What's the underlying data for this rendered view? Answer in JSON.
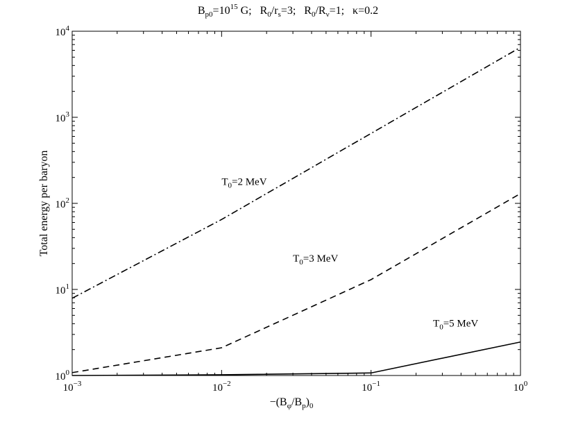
{
  "chart_data": {
    "type": "line",
    "title_parts": {
      "bp": "B",
      "bp_sub": "p0",
      "bp_eq": "=10",
      "bp_sup": "15",
      "bp_unit": " G;",
      "r0rs": "R",
      "r0rs_sub": "0",
      "r0rs_mid": "/r",
      "r0rs_sub2": "s",
      "r0rs_val": "=3;",
      "r0rv": "R",
      "r0rv_sub": "0",
      "r0rv_mid": "/R",
      "r0rv_sub2": "ν",
      "r0rv_val": "=1;",
      "kappa": "κ=0.2"
    },
    "ylabel": "Total energy per baryon",
    "xlabel_parts": {
      "a": "−(B",
      "b": "φ",
      "c": "/B",
      "d": "p",
      "e": ")",
      "f": "0"
    },
    "xscale": "log",
    "yscale": "log",
    "xlim": [
      0.001,
      1
    ],
    "ylim": [
      1,
      10000
    ],
    "x_ticks": [
      {
        "base": "10",
        "exp": "−3"
      },
      {
        "base": "10",
        "exp": "−2"
      },
      {
        "base": "10",
        "exp": "−1"
      },
      {
        "base": "10",
        "exp": "0"
      }
    ],
    "y_ticks": [
      {
        "base": "10",
        "exp": "0"
      },
      {
        "base": "10",
        "exp": "1"
      },
      {
        "base": "10",
        "exp": "2"
      },
      {
        "base": "10",
        "exp": "3"
      },
      {
        "base": "10",
        "exp": "4"
      }
    ],
    "series": [
      {
        "name": "T0=2 MeV",
        "label_main": "T",
        "label_sub": "0",
        "label_rest": "=2 MeV",
        "style": "dashdot",
        "x": [
          0.001,
          0.01,
          0.1,
          1
        ],
        "y": [
          7.9,
          65,
          650,
          6500
        ]
      },
      {
        "name": "T0=3 MeV",
        "label_main": "T",
        "label_sub": "0",
        "label_rest": "=3 MeV",
        "style": "dashed",
        "x": [
          0.001,
          0.01,
          0.1,
          1
        ],
        "y": [
          1.08,
          2.1,
          13,
          130
        ]
      },
      {
        "name": "T0=5 MeV",
        "label_main": "T",
        "label_sub": "0",
        "label_rest": "=5 MeV",
        "style": "solid",
        "x": [
          0.001,
          0.01,
          0.1,
          1
        ],
        "y": [
          1.0,
          1.02,
          1.07,
          2.45
        ]
      }
    ],
    "grid": false,
    "legend": "none (inline labels)"
  }
}
